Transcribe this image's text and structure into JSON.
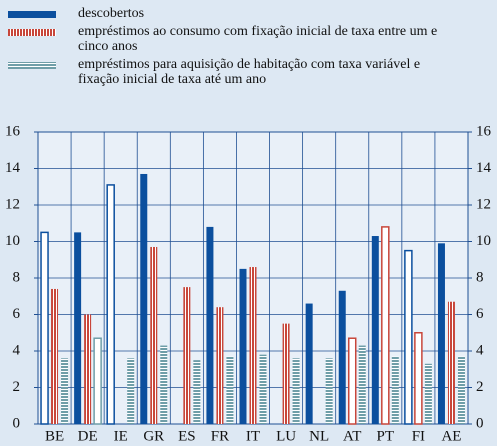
{
  "chart_data": {
    "type": "bar",
    "categories": [
      "BE",
      "DE",
      "IE",
      "GR",
      "ES",
      "FR",
      "IT",
      "LU",
      "NL",
      "AT",
      "PT",
      "FI",
      "AE"
    ],
    "series": [
      {
        "name": "descobertos",
        "color": "#0b4f9e",
        "pattern": "solid",
        "values": [
          10.5,
          10.5,
          13.1,
          13.7,
          null,
          10.8,
          8.5,
          null,
          6.6,
          7.3,
          10.3,
          9.5,
          9.9
        ],
        "hollow": [
          true,
          false,
          true,
          false,
          false,
          false,
          false,
          false,
          false,
          false,
          false,
          true,
          false
        ]
      },
      {
        "name": "empréstimos ao consumo com fixação inicial de taxa entre um e cinco anos",
        "color": "#c8463a",
        "pattern": "vertical",
        "values": [
          7.4,
          6.0,
          null,
          9.7,
          7.5,
          6.4,
          8.6,
          5.5,
          null,
          4.7,
          10.8,
          5.0,
          6.7
        ],
        "hollow": [
          false,
          false,
          false,
          false,
          false,
          false,
          false,
          false,
          false,
          true,
          true,
          true,
          false
        ]
      },
      {
        "name": "empréstimos para aquisição de habitação com taxa variável e fixação inicial de taxa até um ano",
        "color": "#6f9ea8",
        "pattern": "horizontal",
        "values": [
          3.6,
          4.7,
          3.6,
          4.3,
          3.5,
          3.7,
          3.8,
          3.6,
          3.6,
          4.3,
          3.7,
          3.3,
          3.7
        ],
        "hollow": [
          false,
          true,
          false,
          false,
          false,
          false,
          false,
          false,
          false,
          false,
          false,
          false,
          false
        ]
      }
    ],
    "ylim": [
      0,
      16
    ],
    "yticks": [
      0,
      2,
      4,
      6,
      8,
      10,
      12,
      14,
      16
    ],
    "grid": true,
    "legend": "top-left"
  }
}
